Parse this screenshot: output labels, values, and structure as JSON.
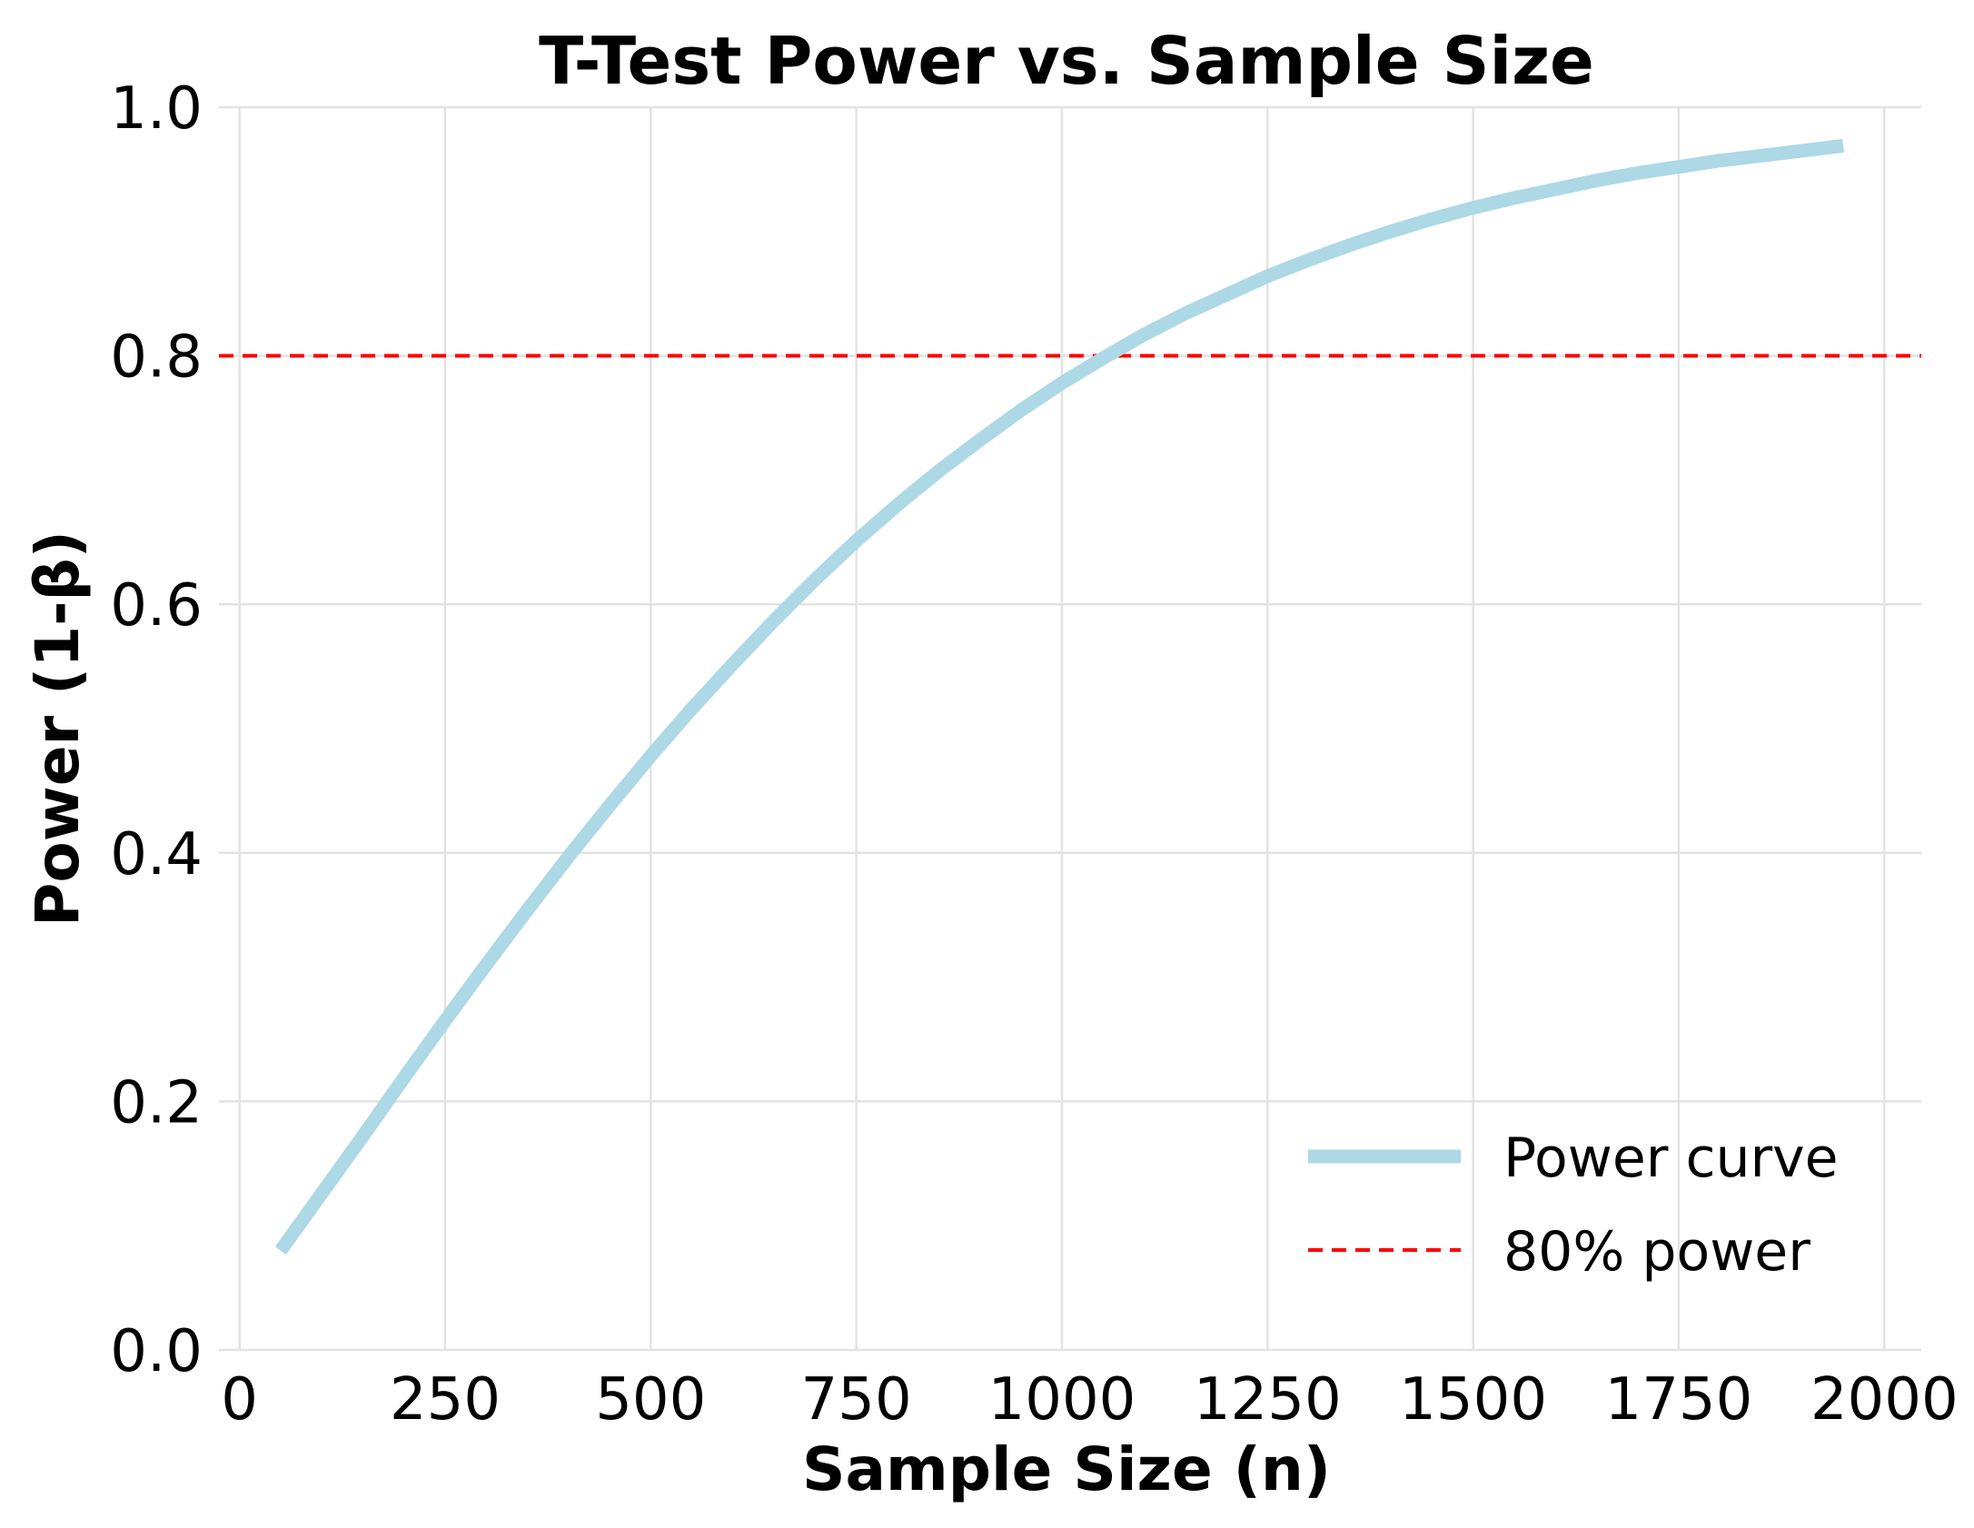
{
  "chart_data": {
    "type": "line",
    "title": "T-Test Power vs. Sample Size",
    "xlabel": "Sample Size (n)",
    "ylabel": "Power (1-β)",
    "xlim": [
      -25,
      2045
    ],
    "ylim": [
      0,
      1.0
    ],
    "x_ticks": [
      0,
      250,
      500,
      750,
      1000,
      1250,
      1500,
      1750,
      2000
    ],
    "x_tick_labels": [
      "0",
      "250",
      "500",
      "750",
      "1000",
      "1250",
      "1500",
      "1750",
      "2000"
    ],
    "y_ticks": [
      0.0,
      0.2,
      0.4,
      0.6,
      0.8,
      1.0
    ],
    "y_tick_labels": [
      "0.0",
      "0.2",
      "0.4",
      "0.6",
      "0.8",
      "1.0"
    ],
    "grid": true,
    "legend_position": "bottom-right",
    "series": [
      {
        "name": "Power curve",
        "color": "#add8e6",
        "style": "solid",
        "x": [
          50,
          100,
          150,
          200,
          250,
          300,
          350,
          400,
          450,
          500,
          550,
          600,
          650,
          700,
          750,
          800,
          850,
          900,
          950,
          1000,
          1050,
          1100,
          1150,
          1200,
          1250,
          1300,
          1350,
          1400,
          1450,
          1500,
          1550,
          1600,
          1650,
          1700,
          1750,
          1800,
          1850,
          1900,
          1950
        ],
        "y": [
          0.08,
          0.126,
          0.172,
          0.219,
          0.265,
          0.31,
          0.354,
          0.397,
          0.438,
          0.478,
          0.516,
          0.552,
          0.587,
          0.62,
          0.651,
          0.68,
          0.707,
          0.732,
          0.756,
          0.778,
          0.798,
          0.817,
          0.834,
          0.849,
          0.864,
          0.877,
          0.889,
          0.9,
          0.91,
          0.919,
          0.927,
          0.934,
          0.941,
          0.947,
          0.952,
          0.957,
          0.961,
          0.965,
          0.969
        ]
      },
      {
        "name": "80% power",
        "color": "#ff0000",
        "style": "dashed",
        "y_constant": 0.8
      }
    ]
  }
}
